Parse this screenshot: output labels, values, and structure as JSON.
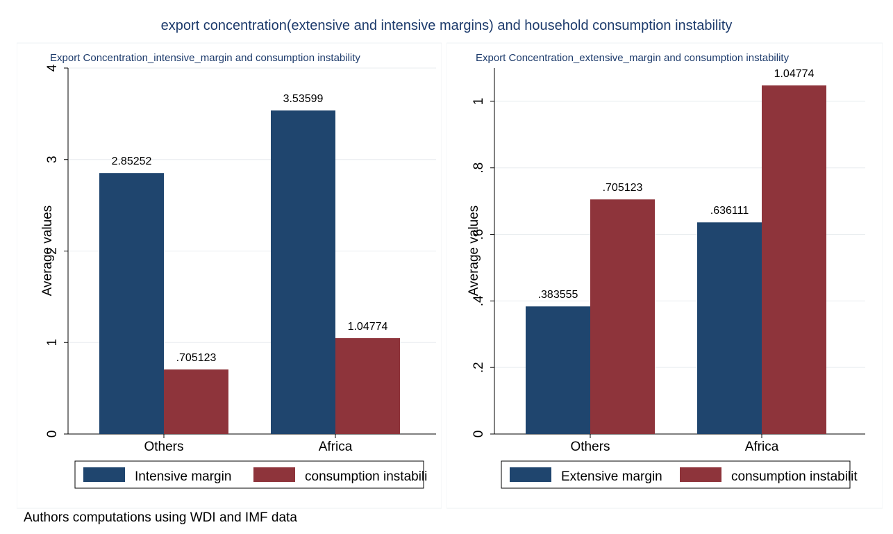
{
  "figure": {
    "title": "export concentration(extensive and intensive margins) and household consumption instability",
    "note": "Authors computations using WDI and IMF data",
    "colors": {
      "title": "#1c3a6b",
      "blue": "#1f456e",
      "red": "#8e343b",
      "grid": "#e8ecef",
      "panel_bg": "#ffffff",
      "outer_bg": "#ffffff"
    }
  },
  "chart_data": [
    {
      "type": "bar",
      "title": "Export Concentration_intensive_margin and consumption instability",
      "ylabel": "Average values",
      "xlabel": "",
      "categories": [
        "Others",
        "Africa"
      ],
      "ylim": [
        0,
        4
      ],
      "yticks": [
        0,
        1,
        2,
        3,
        4
      ],
      "ytick_labels": [
        "0",
        "1",
        "2",
        "3",
        "4"
      ],
      "series": [
        {
          "name": "Intensive margin",
          "values": [
            2.85252,
            3.53599
          ],
          "labels": [
            "2.85252",
            "3.53599"
          ]
        },
        {
          "name": "consumption instabili",
          "values": [
            0.705123,
            1.04774
          ],
          "labels": [
            ".705123",
            "1.04774"
          ]
        }
      ],
      "grid": true,
      "legend": "bottom"
    },
    {
      "type": "bar",
      "title": "Export Concentration_extensive_margin and consumption instability",
      "ylabel": "Average values",
      "xlabel": "",
      "categories": [
        "Others",
        "Africa"
      ],
      "ylim": [
        0,
        1.1
      ],
      "yticks": [
        0,
        0.2,
        0.4,
        0.6,
        0.8,
        1
      ],
      "ytick_labels": [
        "0",
        ".2",
        ".4",
        ".6",
        ".8",
        "1"
      ],
      "series": [
        {
          "name": "Extensive margin",
          "values": [
            0.383555,
            0.636111
          ],
          "labels": [
            ".383555",
            ".636111"
          ]
        },
        {
          "name": "consumption instabilit",
          "values": [
            0.705123,
            1.04774
          ],
          "labels": [
            ".705123",
            "1.04774"
          ]
        }
      ],
      "grid": true,
      "legend": "bottom"
    }
  ]
}
